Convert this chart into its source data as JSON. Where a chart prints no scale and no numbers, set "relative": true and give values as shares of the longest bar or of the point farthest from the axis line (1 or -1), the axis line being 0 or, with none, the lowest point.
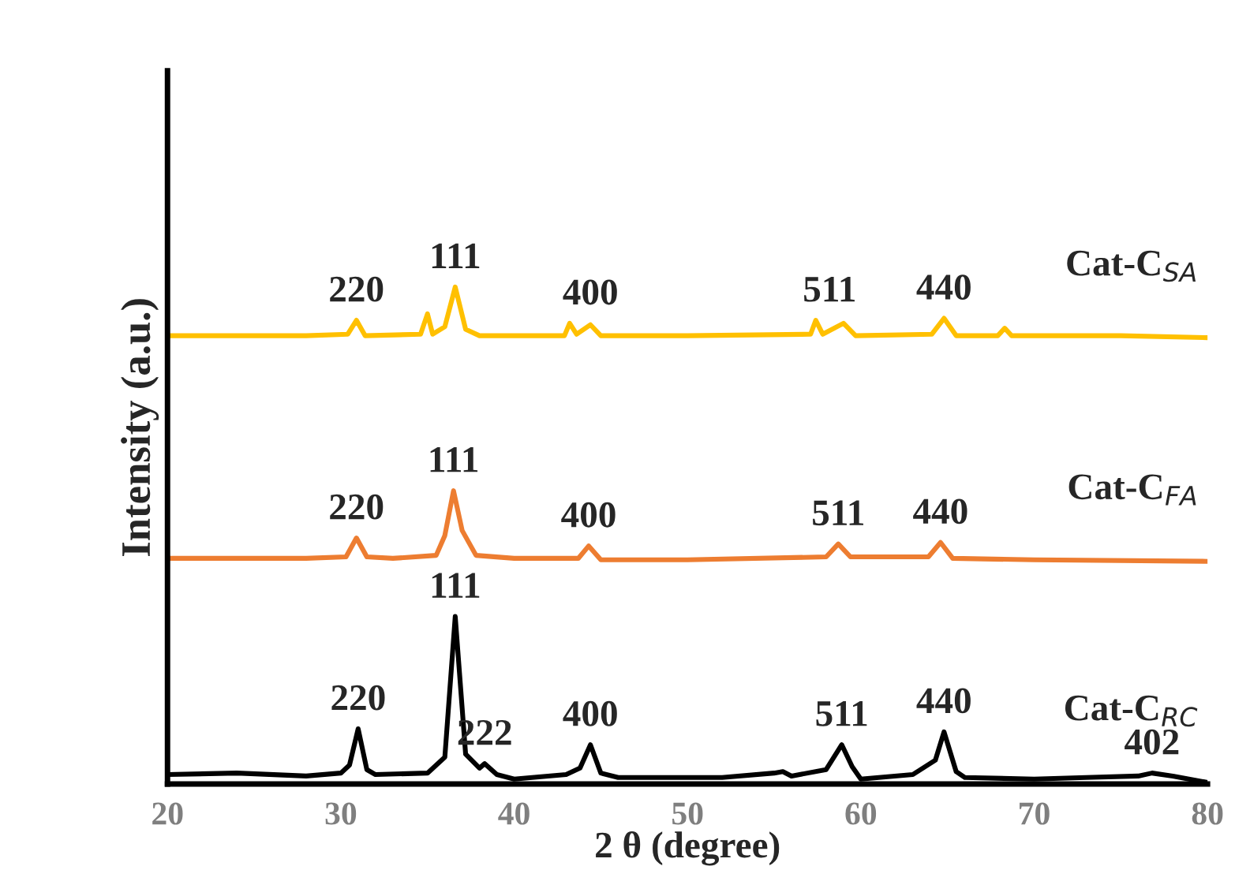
{
  "chart_data": {
    "type": "line",
    "relative": true,
    "xlabel": "2 θ (degree)",
    "ylabel": "Intensity (a.u.)",
    "xlim": [
      20,
      80
    ],
    "xticks": [
      20,
      30,
      40,
      50,
      60,
      70,
      80
    ],
    "grid": false,
    "legend": false,
    "marker": "none",
    "line_style": "solid",
    "series": [
      {
        "name": "Cat-C$_{RC}$",
        "color": "#000000",
        "x": [
          20,
          24,
          28,
          30,
          30.5,
          31.0,
          31.5,
          32,
          35,
          36,
          36.6,
          37.2,
          38,
          38.3,
          39,
          40,
          43,
          43.8,
          44.4,
          45,
          46,
          48,
          52,
          55,
          55.5,
          56,
          58,
          58.9,
          59.5,
          60,
          63,
          64.3,
          64.8,
          65.5,
          66,
          70,
          73,
          76,
          76.8,
          78,
          80
        ],
        "values": [
          0.019,
          0.022,
          0.016,
          0.022,
          0.038,
          0.111,
          0.029,
          0.019,
          0.022,
          0.054,
          0.337,
          0.06,
          0.032,
          0.041,
          0.019,
          0.01,
          0.019,
          0.032,
          0.079,
          0.022,
          0.013,
          0.013,
          0.013,
          0.022,
          0.025,
          0.016,
          0.029,
          0.079,
          0.035,
          0.01,
          0.019,
          0.048,
          0.105,
          0.025,
          0.013,
          0.01,
          0.013,
          0.016,
          0.022,
          0.016,
          0.003
        ]
      },
      {
        "name": "Cat-C$_{FA}$",
        "color": "#ed7d31",
        "x": [
          20,
          28,
          30.3,
          30.9,
          31.5,
          33,
          35.5,
          36.0,
          36.5,
          37.0,
          37.8,
          40,
          43.7,
          44.3,
          45.0,
          50,
          58.0,
          58.7,
          59.4,
          63.9,
          64.6,
          65.3,
          70,
          80
        ],
        "values": [
          0.454,
          0.454,
          0.457,
          0.495,
          0.457,
          0.454,
          0.46,
          0.5,
          0.59,
          0.51,
          0.46,
          0.454,
          0.454,
          0.479,
          0.451,
          0.451,
          0.457,
          0.483,
          0.457,
          0.457,
          0.486,
          0.454,
          0.451,
          0.448
        ]
      },
      {
        "name": "Cat-C$_{SA}$",
        "color": "#ffc000",
        "x": [
          20,
          28,
          30.4,
          30.9,
          31.4,
          34.6,
          35.0,
          35.3,
          36.0,
          36.6,
          37.2,
          38,
          42.9,
          43.2,
          43.6,
          44.4,
          45.0,
          50,
          57.1,
          57.4,
          57.8,
          59.0,
          59.7,
          64.1,
          64.8,
          65.5,
          67.9,
          68.3,
          68.7,
          75,
          80
        ],
        "values": [
          0.902,
          0.902,
          0.905,
          0.933,
          0.902,
          0.905,
          0.946,
          0.905,
          0.92,
          1.0,
          0.915,
          0.902,
          0.902,
          0.927,
          0.905,
          0.924,
          0.902,
          0.902,
          0.905,
          0.933,
          0.905,
          0.927,
          0.902,
          0.905,
          0.937,
          0.902,
          0.902,
          0.917,
          0.902,
          0.902,
          0.898
        ]
      }
    ],
    "annotations": [
      {
        "text": "220",
        "x": 30.9,
        "y": 0.933
      },
      {
        "text": "111",
        "x": 36.6,
        "y": 1.0
      },
      {
        "text": "400",
        "x": 44.4,
        "y": 0.927
      },
      {
        "text": "511",
        "x": 58.2,
        "y": 0.933
      },
      {
        "text": "440",
        "x": 64.8,
        "y": 0.937
      },
      {
        "text": "220",
        "x": 30.9,
        "y": 0.495
      },
      {
        "text": "111",
        "x": 36.5,
        "y": 0.59
      },
      {
        "text": "400",
        "x": 44.3,
        "y": 0.479
      },
      {
        "text": "511",
        "x": 58.7,
        "y": 0.483
      },
      {
        "text": "440",
        "x": 64.6,
        "y": 0.486
      },
      {
        "text": "220",
        "x": 31.0,
        "y": 0.111
      },
      {
        "text": "111",
        "x": 36.6,
        "y": 0.337
      },
      {
        "text": "222",
        "x": 38.3,
        "y": 0.041
      },
      {
        "text": "400",
        "x": 44.4,
        "y": 0.079
      },
      {
        "text": "511",
        "x": 58.9,
        "y": 0.079
      },
      {
        "text": "440",
        "x": 64.8,
        "y": 0.105
      },
      {
        "text": "402",
        "x": 76.8,
        "y": 0.022
      }
    ]
  }
}
